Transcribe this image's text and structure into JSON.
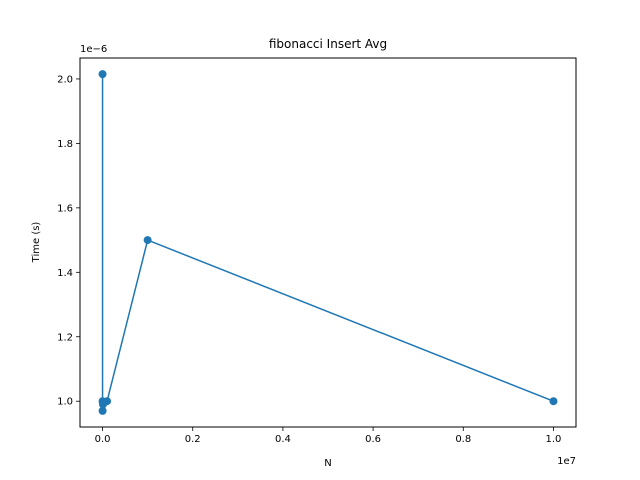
{
  "chart_data": {
    "type": "line",
    "title": "fibonacci Insert Avg",
    "xlabel": "N",
    "ylabel": "Time (s)",
    "x_offset_label": "1e7",
    "y_offset_label": "1e−6",
    "xlim": [
      -500000,
      10500000
    ],
    "ylim": [
      9.2e-07,
      2.065e-06
    ],
    "x_ticks": [
      {
        "value": 0,
        "label": "0.0"
      },
      {
        "value": 2000000,
        "label": "0.2"
      },
      {
        "value": 4000000,
        "label": "0.4"
      },
      {
        "value": 6000000,
        "label": "0.6"
      },
      {
        "value": 8000000,
        "label": "0.8"
      },
      {
        "value": 10000000,
        "label": "1.0"
      }
    ],
    "y_ticks": [
      {
        "value": 1e-06,
        "label": "1.0"
      },
      {
        "value": 1.2e-06,
        "label": "1.2"
      },
      {
        "value": 1.4e-06,
        "label": "1.4"
      },
      {
        "value": 1.6e-06,
        "label": "1.6"
      },
      {
        "value": 1.8e-06,
        "label": "1.8"
      },
      {
        "value": 2e-06,
        "label": "2.0"
      }
    ],
    "grid": false,
    "series": [
      {
        "color": "#1f77b4",
        "marker": "circle",
        "x": [
          10,
          100,
          1000,
          10000,
          100000,
          1000000,
          10000000
        ],
        "y": [
          2.015e-06,
          1e-06,
          9.7e-07,
          9.9e-07,
          1e-06,
          1.5e-06,
          1e-06
        ]
      }
    ]
  }
}
